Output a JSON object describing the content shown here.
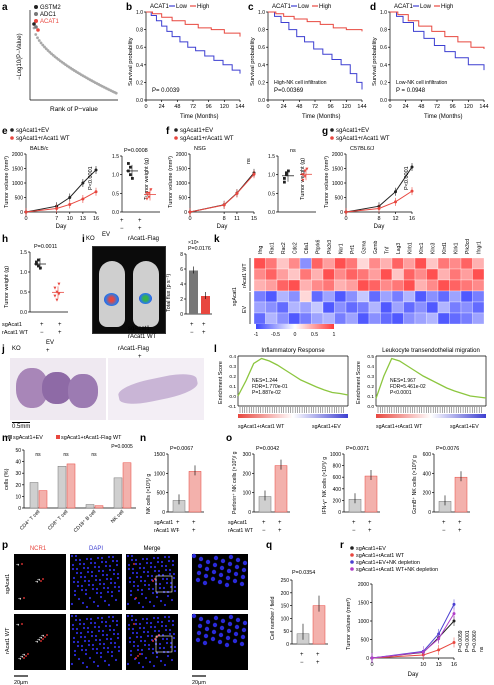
{
  "figure": {
    "panel_letters": [
      "a",
      "b",
      "c",
      "d",
      "e",
      "f",
      "g",
      "h",
      "i",
      "k",
      "j",
      "l",
      "m",
      "n",
      "o",
      "p",
      "q",
      "r"
    ]
  },
  "colors": {
    "high": "#e8473f",
    "low": "#3d3fd1",
    "ev": "#222222",
    "wt": "#e8473f",
    "ev_nk": "#4b3fd1",
    "wt_nk": "#b13fc9",
    "enrich": "#8cc63f"
  },
  "panels": {
    "a": {
      "ylabel": "−Log10(P−Value)",
      "xlabel": "Rank of P−value",
      "legend": [
        "GSTM2",
        "ADC1",
        "ACAT1"
      ]
    },
    "b": {
      "title": "ACAT1 ◦ Low ◦ High",
      "legend_low": "Low",
      "legend_high": "High",
      "legend_gene": "ACAT1",
      "ylabel": "Survival probability",
      "xlabel": "Time (Months)",
      "ticks": [
        "0",
        "24",
        "48",
        "72",
        "96",
        "120",
        "144"
      ],
      "yticks": [
        "0.0",
        "0.2",
        "0.4",
        "0.6",
        "0.8",
        "1.0"
      ],
      "pvalue": "P= 0.0039"
    },
    "c": {
      "legend_low": "Low",
      "legend_high": "High",
      "legend_gene": "ACAT1",
      "ylabel": "Survival probability",
      "xlabel": "Time (Months)",
      "pvalue": "P=0.00369",
      "note": "High-NK cell infiltration"
    },
    "d": {
      "legend_low": "Low",
      "legend_high": "High",
      "legend_gene": "ACAT1",
      "ylabel": "Survival probability",
      "xlabel": "Time (Months)",
      "pvalue": "P = 0.0948",
      "note": "Low-NK cell infiltration"
    },
    "e": {
      "legend": [
        "sgAcat1+EV",
        "sgAcat1+rAcat1 WT"
      ],
      "model": "BALB/c",
      "ylabel": "Tumor volume (mm³)",
      "xlabel": "Day",
      "xticks": [
        "0",
        "7",
        "10",
        "13",
        "16"
      ],
      "yticks": [
        "0",
        "500",
        "1000",
        "1500",
        "2000"
      ],
      "pvalue": "P<0.0001",
      "bar_ylabel": "Tumor weight (g)",
      "bar_pvalue": "P=0.0008",
      "bar_yticks": [
        "0.0",
        "0.5",
        "1.0",
        "1.5"
      ]
    },
    "f": {
      "legend": [
        "sgAcat1+EV",
        "sgAcat1+rAcat1 WT"
      ],
      "model": "NSG",
      "ylabel": "Tumor volume (mm³)",
      "xlabel": "Day",
      "xticks": [
        "0",
        "8",
        "11",
        "15"
      ],
      "yticks": [
        "0",
        "500",
        "1000",
        "1500",
        "2000"
      ],
      "ns": "ns",
      "bar_ylabel": "Tumor weight (g)",
      "bar_ns": "ns",
      "bar_yticks": [
        "0.0",
        "0.5",
        "1.0",
        "1.5"
      ]
    },
    "g": {
      "legend": [
        "sgAcat1+EV",
        "sgAcat1+rAcat1 WT"
      ],
      "model": "C57BL6/J",
      "ylabel": "Tumor volume (mm³)",
      "xlabel": "Day",
      "xticks": [
        "0",
        "8",
        "12",
        "16"
      ],
      "yticks": [
        "0",
        "500",
        "1000",
        "1500",
        "2000"
      ],
      "pvalue": "P<0.0001"
    },
    "h": {
      "ylabel": "Tumor weight (g)",
      "pvalue": "P=0.0011",
      "yticks": [
        "0.0",
        "0.5",
        "1.0",
        "1.5"
      ],
      "row1": "sgAcat1",
      "row2": "rAcat1 WT"
    },
    "i": {
      "ev": "EV",
      "ko": "KO",
      "racat": "rAcat1-Flag",
      "ylabel": "Total flux (p s⁻¹)",
      "pvalue": "P=0.0176",
      "yticks": [
        "0",
        "2",
        "4",
        "6",
        "8"
      ],
      "ymult": "×10⁸",
      "row1": "sgAcat1",
      "row2": "rAcat1 WT"
    },
    "k": {
      "genes": [
        "Ifng",
        "Rac1",
        "Rac2",
        "Cdc2",
        "Ctla1",
        "Ptprk6",
        "Pik3r3",
        "Ncr1",
        "Prf1",
        "Gzma",
        "Gzmb",
        "Tnf",
        "Lag3",
        "Klrb1",
        "Klrc1",
        "Klrc3",
        "Klrd1",
        "Klrk1",
        "Pik3cd",
        "Ifngr1"
      ],
      "row_group1": "rAcat1 WT",
      "row_group2": "EV",
      "row_side": "sgAcat1",
      "scale_ticks": [
        "-1",
        "-0.5",
        "0",
        "0.5",
        "1"
      ]
    },
    "j": {
      "ko": "KO",
      "ev": "EV",
      "racat": "rAcat1-Flag",
      "scalebar": "0.5mm"
    },
    "l": {
      "left_title": "Inflammatory Response",
      "left_stats": [
        "NES=1.244",
        "FDR=1.770e-01",
        "P=1.887e-02"
      ],
      "right_title": "Leukocyte transendothelial migration",
      "right_stats": [
        "NES=1.967",
        "FDR=5.461e-02",
        "P<0.0001"
      ],
      "ylabel": "Enrichment Score",
      "left_ticks": [
        "0.4",
        "0.3",
        "0.2",
        "0.1",
        "0.0",
        "-0.1"
      ],
      "right_ticks": [
        "0.5",
        "0.4",
        "0.3",
        "0.2",
        "0.1",
        "0.0"
      ],
      "bottom_left": "sgAcat1+rAcat1 WT",
      "bottom_right": "sgAcat1+EV"
    },
    "m": {
      "legend": [
        "sgAcat1+EV",
        "sgAcat1+rAcat1-Flag WT"
      ],
      "ylabel": "cells (%)",
      "categories": [
        "CD4⁺ T cell",
        "CD8⁺ T cell",
        "CD19⁺ B cell",
        "NK cell"
      ],
      "annotations": [
        "ns",
        "ns",
        "ns",
        "P=0.0005"
      ],
      "yticks": [
        "0",
        "10",
        "20",
        "30",
        "40",
        "50"
      ]
    },
    "n": {
      "ylabel": "NK cells (×10³)/ g",
      "pvalue": "P=0.0067",
      "yticks": [
        "0",
        "500",
        "1000",
        "1500"
      ],
      "row1": "sgAcat1",
      "row2": "rAcat1 WT"
    },
    "o": {
      "panels": [
        {
          "ylabel": "Perforin⁺ NK cells (×10³)/ g",
          "pvalue": "P=0.0042",
          "yticks": [
            "0",
            "100",
            "200",
            "300"
          ]
        },
        {
          "ylabel": "IFN-γ⁺ NK cells (×10³)/ g",
          "pvalue": "P=0.0071",
          "yticks": [
            "0",
            "200",
            "400",
            "600",
            "800",
            "1000"
          ]
        },
        {
          "ylabel": "GzmB⁺ NK cells (×10³)/ g",
          "pvalue": "P=0.0076",
          "yticks": [
            "0",
            "200",
            "400",
            "600"
          ]
        }
      ],
      "row1": "sgAcat1",
      "row2": "rAcat1 WT"
    },
    "p": {
      "cols": [
        "NCR1",
        "DAPI",
        "Merge"
      ],
      "rows": [
        "sgAcat1",
        "rAcat1 WT"
      ],
      "scale_left": "20μm",
      "scale_right": "20μm"
    },
    "q": {
      "ylabel": "Cell number / field",
      "pvalue": "P=0.0354",
      "yticks": [
        "0",
        "50",
        "100",
        "150",
        "200",
        "250"
      ],
      "row1": "sgAcat1",
      "row2": "rAcat1 WT"
    },
    "r": {
      "legend": [
        "sgAcat1+EV",
        "sgAcat1+rAcat1 WT",
        "sgAcat1+EV+NK depletion",
        "sgAcat1+rAcat1 WT+NK depletion"
      ],
      "ylabel": "Tumor volume (mm³)",
      "xlabel": "Day",
      "xticks": [
        "0",
        "10",
        "13",
        "16"
      ],
      "yticks": [
        "0",
        "500",
        "1000",
        "1500",
        "2000"
      ],
      "pvals": [
        "P=0.0059",
        "P=0.0001",
        "P=0.0060",
        "ns"
      ]
    }
  },
  "plus": "+",
  "minus": "−"
}
